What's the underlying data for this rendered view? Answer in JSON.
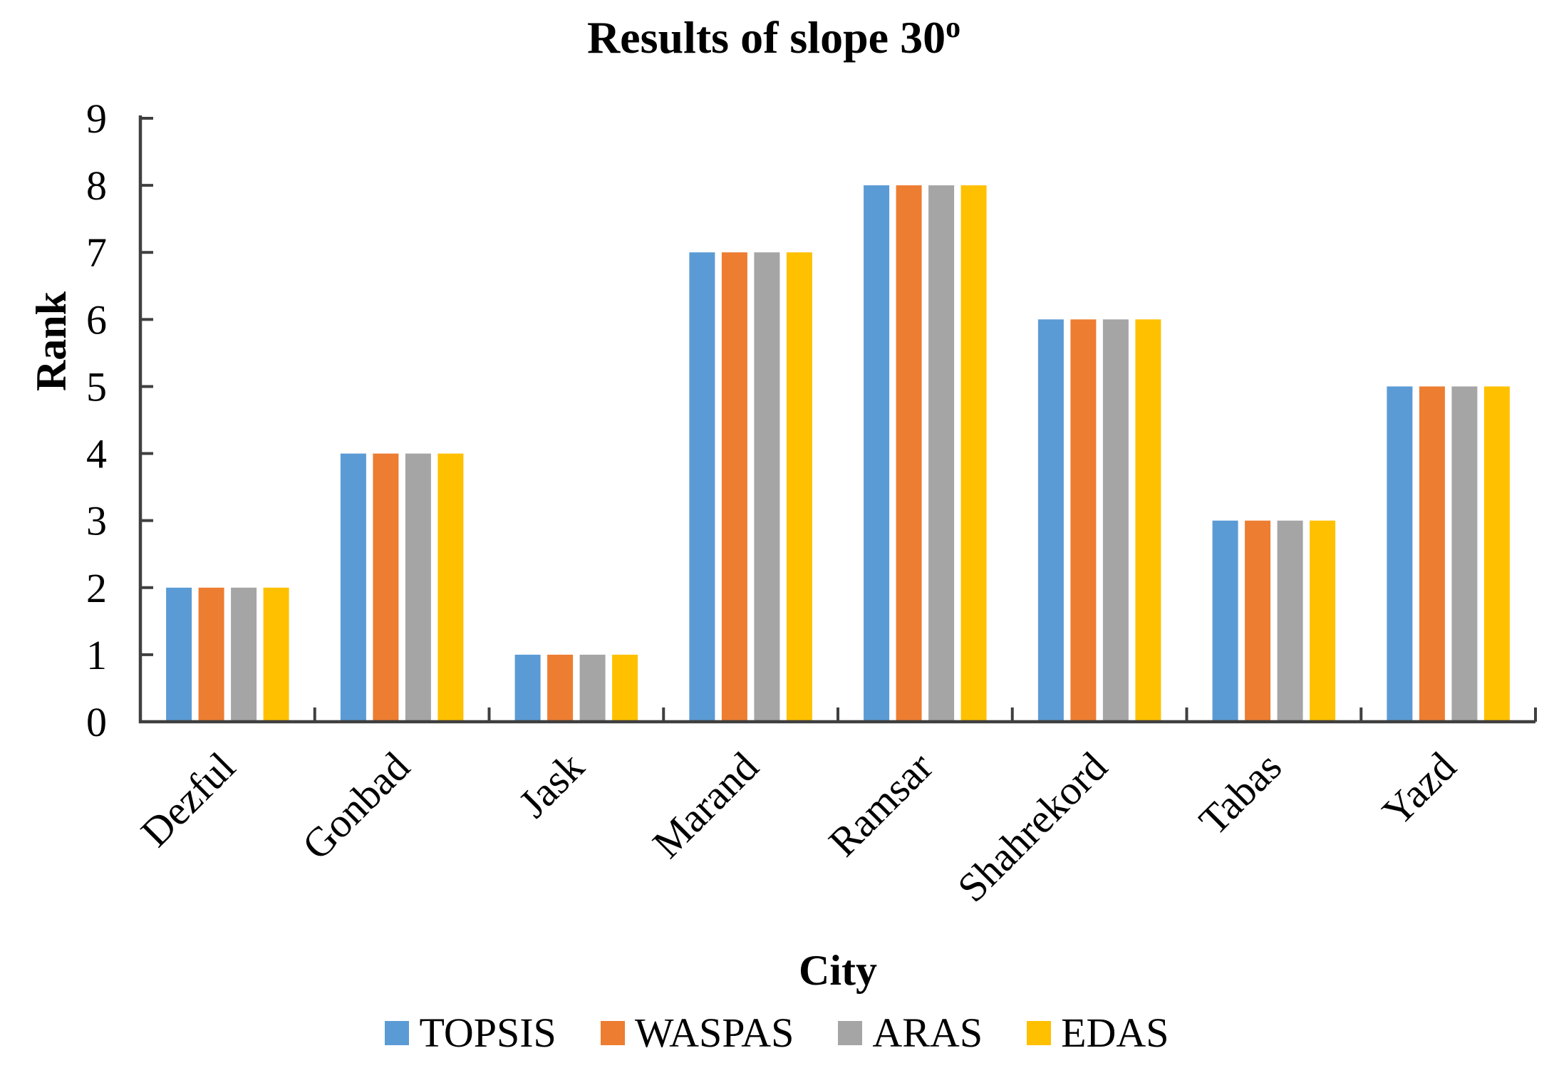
{
  "title": {
    "main": "Results of slope 30",
    "sup": "o"
  },
  "axes": {
    "y_label": "Rank",
    "x_label": "City"
  },
  "chart_data": {
    "type": "bar",
    "title": "Results of slope 30°",
    "xlabel": "City",
    "ylabel": "Rank",
    "categories": [
      "Dezful",
      "Gonbad",
      "Jask",
      "Marand",
      "Ramsar",
      "Shahrekord",
      "Tabas",
      "Yazd"
    ],
    "series": [
      {
        "name": "TOPSIS",
        "color": "#5B9BD5",
        "values": [
          2,
          4,
          1,
          7,
          8,
          6,
          3,
          5
        ]
      },
      {
        "name": "WASPAS",
        "color": "#ED7D31",
        "values": [
          2,
          4,
          1,
          7,
          8,
          6,
          3,
          5
        ]
      },
      {
        "name": "ARAS",
        "color": "#A5A5A5",
        "values": [
          2,
          4,
          1,
          7,
          8,
          6,
          3,
          5
        ]
      },
      {
        "name": "EDAS",
        "color": "#FFC000",
        "values": [
          2,
          4,
          1,
          7,
          8,
          6,
          3,
          5
        ]
      }
    ],
    "ylim": [
      0,
      9
    ],
    "yticks": [
      0,
      1,
      2,
      3,
      4,
      5,
      6,
      7,
      8,
      9
    ],
    "grid": false,
    "legend_position": "bottom",
    "x_tick_label_rotation_deg": -45
  },
  "colors": {
    "axis": "#3F3F3F",
    "text": "#000000",
    "background": "#FFFFFF"
  }
}
